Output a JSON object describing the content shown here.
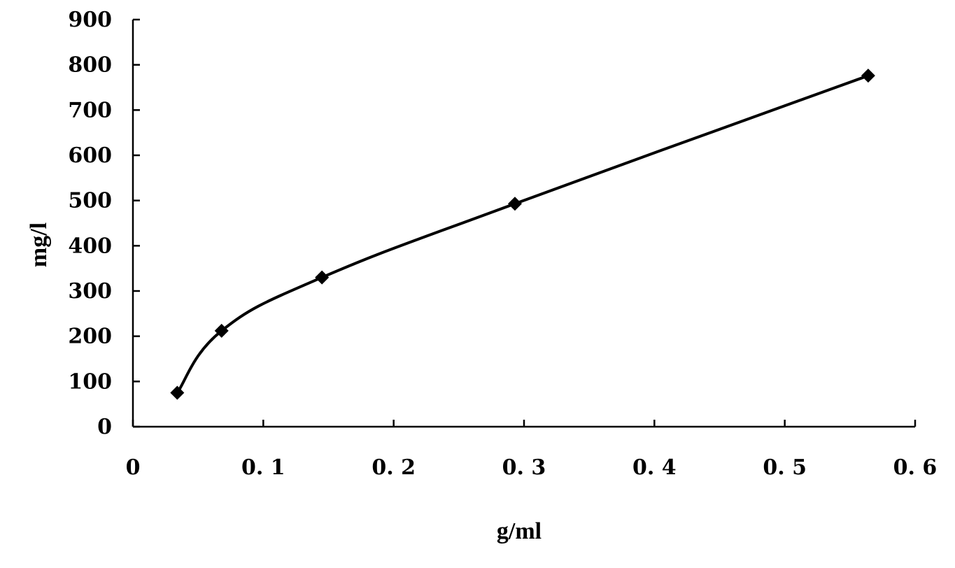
{
  "chart_data": {
    "type": "line",
    "title": "",
    "xlabel": "g/ml",
    "ylabel": "mg/l",
    "xlim": [
      0,
      0.6
    ],
    "ylim": [
      0,
      900
    ],
    "x_ticks": [
      0,
      0.1,
      0.2,
      0.3,
      0.4,
      0.5,
      0.6
    ],
    "x_tick_labels": [
      "0",
      "0. 1",
      "0. 2",
      "0. 3",
      "0. 4",
      "0. 5",
      "0. 6"
    ],
    "y_ticks": [
      0,
      100,
      200,
      300,
      400,
      500,
      600,
      700,
      800,
      900
    ],
    "y_tick_labels": [
      "0",
      "100",
      "200",
      "300",
      "400",
      "500",
      "600",
      "700",
      "800",
      "900"
    ],
    "grid": false,
    "legend": "none",
    "marker": "diamond",
    "line_color": "#000000",
    "smooth": true,
    "series": [
      {
        "x": [
          0.034,
          0.068,
          0.145,
          0.293,
          0.564
        ],
        "y": [
          75,
          212,
          330,
          493,
          776
        ]
      }
    ]
  }
}
